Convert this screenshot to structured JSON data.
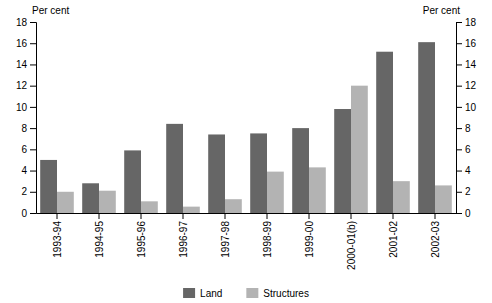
{
  "chart_data": {
    "type": "bar",
    "categories": [
      "1993-94",
      "1994-95",
      "1995-96",
      "1996-97",
      "1997-98",
      "1998-99",
      "1999-00",
      "2000-01(b)",
      "2001-02",
      "2002-03"
    ],
    "series": [
      {
        "name": "Land",
        "color": "#666666",
        "values": [
          5.0,
          2.8,
          5.9,
          8.4,
          7.4,
          7.5,
          8.0,
          9.8,
          15.2,
          16.1
        ]
      },
      {
        "name": "Structures",
        "color": "#b3b3b3",
        "values": [
          2.0,
          2.1,
          1.1,
          0.6,
          1.3,
          3.9,
          4.3,
          12.0,
          3.0,
          2.6
        ]
      }
    ],
    "ylabel": "Per cent",
    "y2label": "Per cent",
    "ylim": [
      0,
      18
    ],
    "yticks": [
      0,
      2,
      4,
      6,
      8,
      10,
      12,
      14,
      16,
      18
    ],
    "y2lim": [
      0,
      18
    ],
    "y2ticks": [
      0,
      2,
      4,
      6,
      8,
      10,
      12,
      14,
      16,
      18
    ],
    "grid": false,
    "legend": "bottom"
  }
}
